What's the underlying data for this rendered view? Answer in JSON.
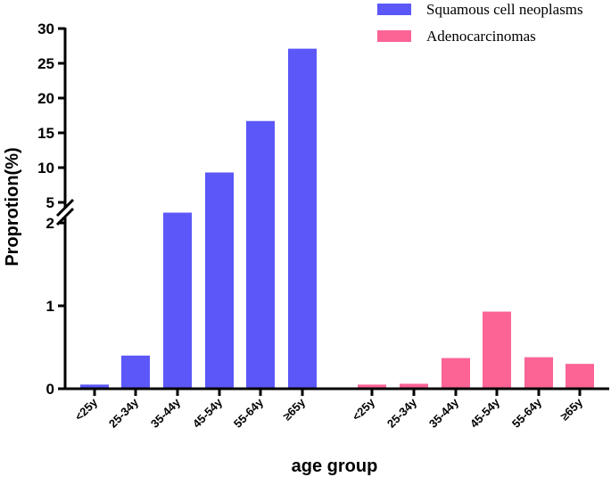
{
  "chart_data": {
    "type": "bar",
    "ylabel": "Proprotion(%)",
    "xlabel": "age group",
    "y_axis_broken": true,
    "y_lower_segment": {
      "range": [
        0,
        2
      ],
      "ticks": [
        0,
        1,
        2
      ]
    },
    "y_upper_segment": {
      "range": [
        5,
        30
      ],
      "ticks": [
        5,
        10,
        15,
        20,
        25,
        30
      ]
    },
    "groups": [
      {
        "name": "Squamous cell neoplasms",
        "color": "#5B57F9",
        "categories": [
          "<25y",
          "25-34y",
          "35-44y",
          "45-54y",
          "55-64y",
          "≥65y"
        ],
        "values": [
          0.05,
          0.4,
          2.5,
          9.3,
          16.7,
          27.1
        ]
      },
      {
        "name": "Adenocarcinomas",
        "color": "#FB6494",
        "categories": [
          "<25y",
          "25-34y",
          "35-44y",
          "45-54y",
          "55-64y",
          "≥65y"
        ],
        "values": [
          0.05,
          0.06,
          0.37,
          0.93,
          0.38,
          0.3
        ]
      }
    ],
    "legend_position": "top-right"
  }
}
